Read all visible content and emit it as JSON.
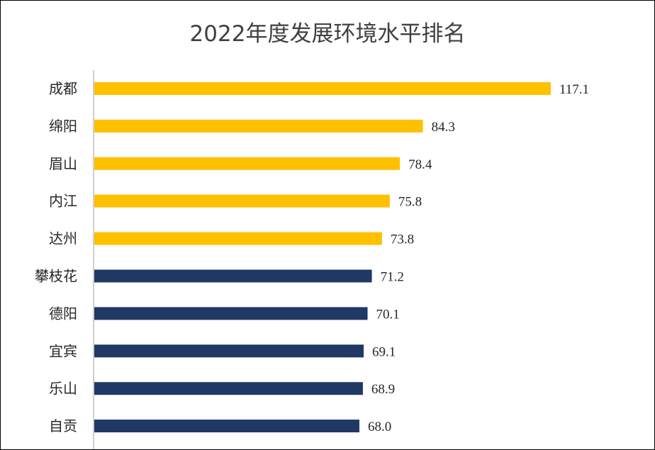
{
  "chart_data": {
    "type": "bar",
    "orientation": "horizontal",
    "title": "2022年度发展环境水平排名",
    "xlabel": "",
    "ylabel": "",
    "categories": [
      "成都",
      "绵阳",
      "眉山",
      "内江",
      "达州",
      "攀枝花",
      "德阳",
      "宜宾",
      "乐山",
      "自贡"
    ],
    "values": [
      117.1,
      84.3,
      78.4,
      75.8,
      73.8,
      71.2,
      70.1,
      69.1,
      68.9,
      68.0
    ],
    "value_labels": [
      "117.1",
      "84.3",
      "78.4",
      "75.8",
      "73.8",
      "71.2",
      "70.1",
      "69.1",
      "68.9",
      "68.0"
    ],
    "xlim": [
      0,
      117.1
    ],
    "grid": false,
    "legend": "none",
    "colors": {
      "highlight": "#FFC000",
      "base": "#1F3864",
      "axis": "#BFBFBF",
      "border": "#000000"
    },
    "highlight_count": 5
  }
}
